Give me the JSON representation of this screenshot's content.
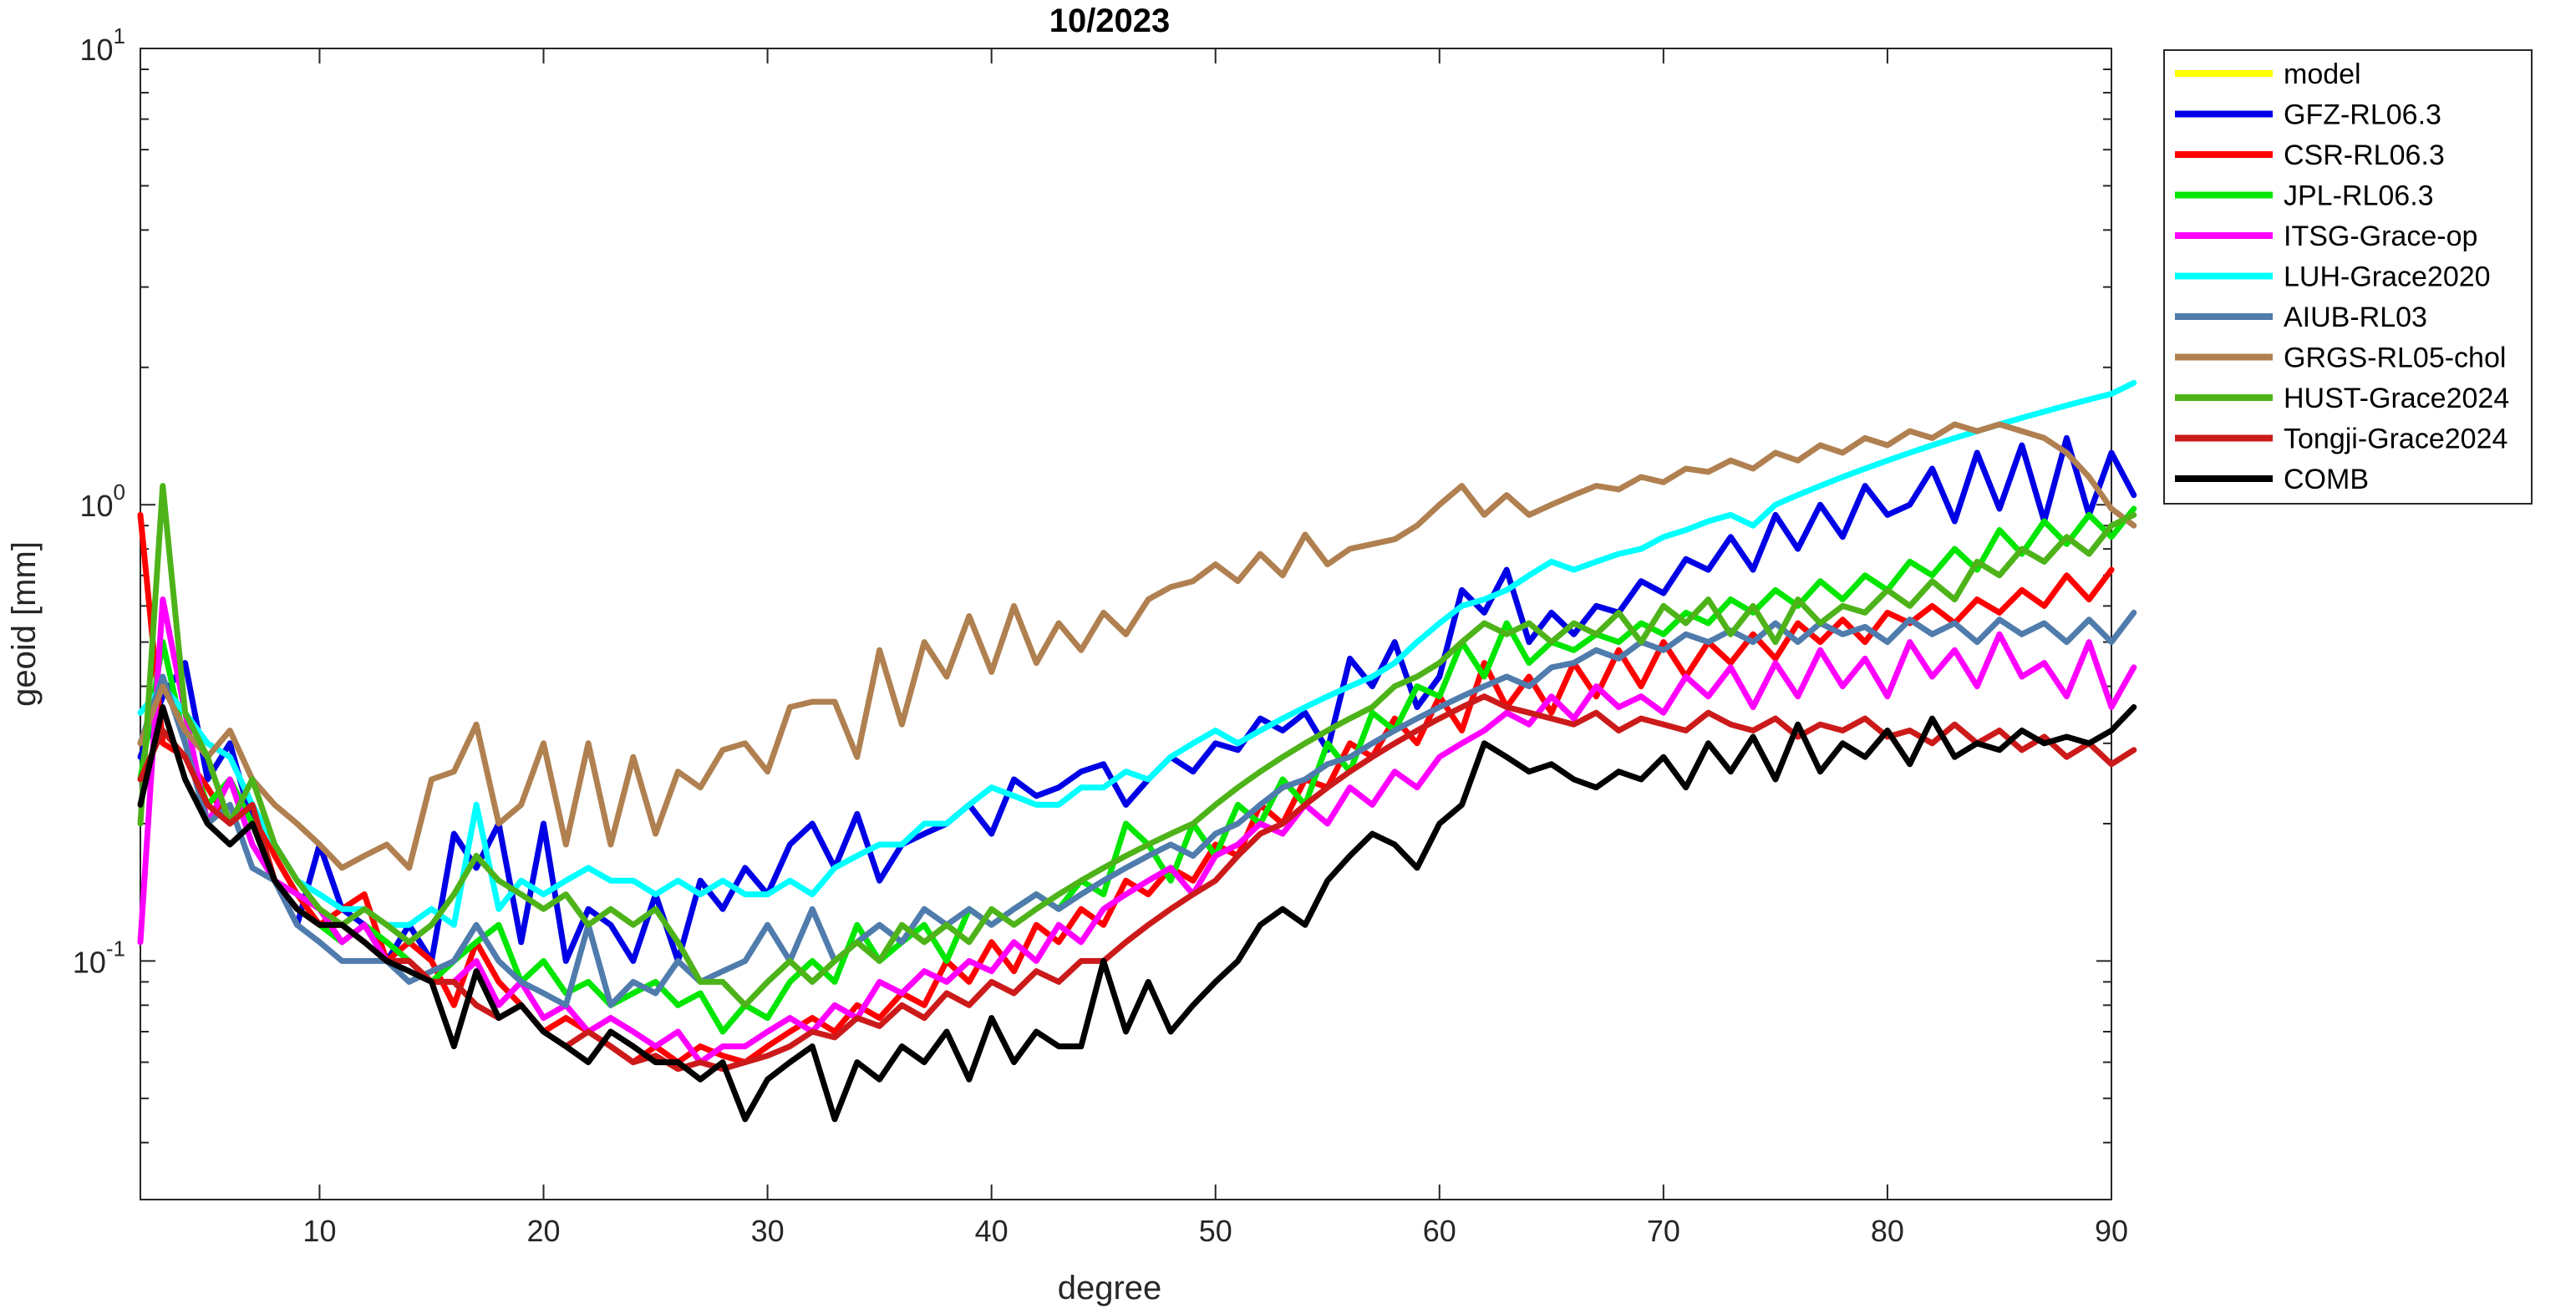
{
  "chart_data": {
    "type": "line",
    "title": "10/2023",
    "xlabel": "degree",
    "ylabel": "geoid [mm]",
    "xlim": [
      2,
      90
    ],
    "ylim": [
      0.03,
      10
    ],
    "yscale": "log",
    "grid": false,
    "legend_position": "outside-top-right",
    "xticks": [
      10,
      20,
      30,
      40,
      50,
      60,
      70,
      80,
      90
    ],
    "xtick_labels": [
      "10",
      "20",
      "30",
      "40",
      "50",
      "60",
      "70",
      "80",
      "90"
    ],
    "yticks": [
      {
        "value": 10,
        "base": "10",
        "exp": "1"
      },
      {
        "value": 1,
        "base": "10",
        "exp": "0"
      },
      {
        "value": 0.1,
        "base": "10",
        "exp": "-1"
      }
    ],
    "series": [
      {
        "name": "model",
        "color": "#FFFF00",
        "x_start": 2,
        "values": []
      },
      {
        "name": "GFZ-RL06.3",
        "color": "#0000E6",
        "x_start": 2,
        "values": [
          0.28,
          0.38,
          0.45,
          0.25,
          0.3,
          0.2,
          0.15,
          0.12,
          0.18,
          0.13,
          0.12,
          0.1,
          0.12,
          0.1,
          0.19,
          0.16,
          0.2,
          0.11,
          0.2,
          0.1,
          0.13,
          0.12,
          0.1,
          0.14,
          0.1,
          0.15,
          0.13,
          0.16,
          0.14,
          0.18,
          0.2,
          0.16,
          0.21,
          0.15,
          0.18,
          0.19,
          0.2,
          0.22,
          0.19,
          0.25,
          0.23,
          0.24,
          0.26,
          0.27,
          0.22,
          0.25,
          0.28,
          0.26,
          0.3,
          0.29,
          0.34,
          0.32,
          0.35,
          0.29,
          0.46,
          0.4,
          0.5,
          0.36,
          0.42,
          0.65,
          0.58,
          0.72,
          0.5,
          0.58,
          0.52,
          0.6,
          0.58,
          0.68,
          0.64,
          0.76,
          0.72,
          0.85,
          0.72,
          0.95,
          0.8,
          1.0,
          0.85,
          1.1,
          0.95,
          1.0,
          1.2,
          0.92,
          1.3,
          0.98,
          1.35,
          0.92,
          1.4,
          0.95,
          1.3,
          1.05
        ]
      },
      {
        "name": "CSR-RL06.3",
        "color": "#FF0000",
        "x_start": 2,
        "values": [
          0.95,
          0.3,
          0.28,
          0.24,
          0.2,
          0.22,
          0.17,
          0.14,
          0.12,
          0.13,
          0.14,
          0.1,
          0.11,
          0.1,
          0.08,
          0.11,
          0.09,
          0.08,
          0.07,
          0.075,
          0.07,
          0.065,
          0.06,
          0.065,
          0.06,
          0.065,
          0.062,
          0.06,
          0.065,
          0.07,
          0.075,
          0.07,
          0.08,
          0.075,
          0.085,
          0.08,
          0.1,
          0.09,
          0.11,
          0.095,
          0.12,
          0.11,
          0.13,
          0.12,
          0.15,
          0.14,
          0.16,
          0.15,
          0.18,
          0.17,
          0.22,
          0.2,
          0.25,
          0.24,
          0.3,
          0.28,
          0.34,
          0.3,
          0.38,
          0.32,
          0.45,
          0.36,
          0.42,
          0.35,
          0.45,
          0.38,
          0.48,
          0.4,
          0.5,
          0.42,
          0.5,
          0.45,
          0.52,
          0.46,
          0.55,
          0.5,
          0.56,
          0.5,
          0.58,
          0.55,
          0.6,
          0.55,
          0.62,
          0.58,
          0.65,
          0.6,
          0.7,
          0.62,
          0.72
        ]
      },
      {
        "name": "JPL-RL06.3",
        "color": "#00E600",
        "x_start": 2,
        "values": [
          0.25,
          0.5,
          0.3,
          0.22,
          0.25,
          0.2,
          0.15,
          0.13,
          0.12,
          0.11,
          0.12,
          0.11,
          0.1,
          0.09,
          0.1,
          0.11,
          0.12,
          0.09,
          0.1,
          0.085,
          0.09,
          0.08,
          0.085,
          0.09,
          0.08,
          0.085,
          0.07,
          0.08,
          0.075,
          0.09,
          0.1,
          0.09,
          0.12,
          0.1,
          0.11,
          0.12,
          0.1,
          0.13,
          0.12,
          0.13,
          0.14,
          0.13,
          0.15,
          0.14,
          0.2,
          0.18,
          0.15,
          0.2,
          0.17,
          0.22,
          0.2,
          0.25,
          0.22,
          0.3,
          0.26,
          0.35,
          0.32,
          0.4,
          0.38,
          0.5,
          0.42,
          0.55,
          0.45,
          0.5,
          0.48,
          0.52,
          0.5,
          0.55,
          0.52,
          0.58,
          0.55,
          0.62,
          0.58,
          0.65,
          0.6,
          0.68,
          0.62,
          0.7,
          0.65,
          0.75,
          0.7,
          0.8,
          0.72,
          0.88,
          0.78,
          0.92,
          0.82,
          0.95,
          0.85,
          0.98
        ]
      },
      {
        "name": "ITSG-Grace-op",
        "color": "#FF00FF",
        "x_start": 2,
        "values": [
          0.11,
          0.62,
          0.35,
          0.2,
          0.25,
          0.18,
          0.15,
          0.14,
          0.13,
          0.11,
          0.12,
          0.1,
          0.1,
          0.09,
          0.09,
          0.1,
          0.08,
          0.09,
          0.075,
          0.08,
          0.07,
          0.075,
          0.07,
          0.065,
          0.07,
          0.06,
          0.065,
          0.065,
          0.07,
          0.075,
          0.07,
          0.08,
          0.075,
          0.09,
          0.085,
          0.095,
          0.09,
          0.1,
          0.095,
          0.11,
          0.1,
          0.12,
          0.11,
          0.13,
          0.14,
          0.15,
          0.16,
          0.14,
          0.17,
          0.18,
          0.2,
          0.19,
          0.22,
          0.2,
          0.24,
          0.22,
          0.26,
          0.24,
          0.28,
          0.3,
          0.32,
          0.35,
          0.33,
          0.38,
          0.34,
          0.4,
          0.36,
          0.38,
          0.35,
          0.42,
          0.38,
          0.44,
          0.36,
          0.45,
          0.38,
          0.48,
          0.4,
          0.46,
          0.38,
          0.5,
          0.42,
          0.48,
          0.4,
          0.52,
          0.42,
          0.45,
          0.38,
          0.5,
          0.36,
          0.44
        ]
      },
      {
        "name": "LUH-Grace2020",
        "color": "#00FFFF",
        "x_start": 2,
        "values": [
          0.35,
          0.4,
          0.35,
          0.3,
          0.28,
          0.22,
          0.18,
          0.15,
          0.14,
          0.13,
          0.13,
          0.12,
          0.12,
          0.13,
          0.12,
          0.22,
          0.13,
          0.15,
          0.14,
          0.15,
          0.16,
          0.15,
          0.15,
          0.14,
          0.15,
          0.14,
          0.15,
          0.14,
          0.14,
          0.15,
          0.14,
          0.16,
          0.17,
          0.18,
          0.18,
          0.2,
          0.2,
          0.22,
          0.24,
          0.23,
          0.22,
          0.22,
          0.24,
          0.24,
          0.26,
          0.25,
          0.28,
          0.3,
          0.32,
          0.3,
          0.32,
          0.34,
          0.36,
          0.38,
          0.4,
          0.42,
          0.45,
          0.5,
          0.55,
          0.6,
          0.62,
          0.65,
          0.7,
          0.75,
          0.72,
          0.75,
          0.78,
          0.8,
          0.85,
          0.88,
          0.92,
          0.95,
          0.9,
          1.0,
          1.05,
          1.1,
          1.15,
          1.2,
          1.25,
          1.3,
          1.35,
          1.4,
          1.45,
          1.5,
          1.55,
          1.6,
          1.65,
          1.7,
          1.75,
          1.85
        ]
      },
      {
        "name": "AIUB-RL03",
        "color": "#4F7CAC",
        "x_start": 2,
        "values": [
          0.3,
          0.42,
          0.3,
          0.2,
          0.22,
          0.16,
          0.15,
          0.12,
          0.11,
          0.1,
          0.1,
          0.1,
          0.09,
          0.095,
          0.1,
          0.12,
          0.1,
          0.09,
          0.085,
          0.08,
          0.12,
          0.08,
          0.09,
          0.085,
          0.1,
          0.09,
          0.095,
          0.1,
          0.12,
          0.1,
          0.13,
          0.1,
          0.11,
          0.12,
          0.11,
          0.13,
          0.12,
          0.13,
          0.12,
          0.13,
          0.14,
          0.13,
          0.14,
          0.15,
          0.16,
          0.17,
          0.18,
          0.17,
          0.19,
          0.2,
          0.22,
          0.24,
          0.25,
          0.27,
          0.28,
          0.3,
          0.32,
          0.34,
          0.36,
          0.38,
          0.4,
          0.42,
          0.4,
          0.44,
          0.45,
          0.48,
          0.46,
          0.5,
          0.48,
          0.52,
          0.5,
          0.53,
          0.5,
          0.55,
          0.5,
          0.55,
          0.52,
          0.54,
          0.5,
          0.56,
          0.52,
          0.55,
          0.5,
          0.56,
          0.52,
          0.55,
          0.5,
          0.56,
          0.5,
          0.58
        ]
      },
      {
        "name": "GRGS-RL05-chol",
        "color": "#B08050",
        "x_start": 2,
        "values": [
          0.3,
          0.4,
          0.32,
          0.28,
          0.32,
          0.25,
          0.22,
          0.2,
          0.18,
          0.16,
          0.17,
          0.18,
          0.16,
          0.25,
          0.26,
          0.33,
          0.2,
          0.22,
          0.3,
          0.18,
          0.3,
          0.18,
          0.28,
          0.19,
          0.26,
          0.24,
          0.29,
          0.3,
          0.26,
          0.36,
          0.37,
          0.37,
          0.28,
          0.48,
          0.33,
          0.5,
          0.42,
          0.57,
          0.43,
          0.6,
          0.45,
          0.55,
          0.48,
          0.58,
          0.52,
          0.62,
          0.66,
          0.68,
          0.74,
          0.68,
          0.78,
          0.7,
          0.86,
          0.74,
          0.8,
          0.82,
          0.84,
          0.9,
          1.0,
          1.1,
          0.95,
          1.05,
          0.95,
          1.0,
          1.05,
          1.1,
          1.08,
          1.15,
          1.12,
          1.2,
          1.18,
          1.25,
          1.2,
          1.3,
          1.25,
          1.35,
          1.3,
          1.4,
          1.35,
          1.45,
          1.4,
          1.5,
          1.45,
          1.5,
          1.45,
          1.4,
          1.3,
          1.15,
          0.98,
          0.9
        ]
      },
      {
        "name": "HUST-Grace2024",
        "color": "#4DB319",
        "x_start": 2,
        "values": [
          0.2,
          1.1,
          0.35,
          0.28,
          0.2,
          0.25,
          0.18,
          0.15,
          0.13,
          0.12,
          0.13,
          0.12,
          0.11,
          0.12,
          0.14,
          0.17,
          0.15,
          0.14,
          0.13,
          0.14,
          0.12,
          0.13,
          0.12,
          0.13,
          0.11,
          0.09,
          0.09,
          0.08,
          0.09,
          0.1,
          0.09,
          0.1,
          0.11,
          0.1,
          0.12,
          0.11,
          0.12,
          0.11,
          0.13,
          0.12,
          0.13,
          0.14,
          0.15,
          0.16,
          0.17,
          0.18,
          0.19,
          0.2,
          0.22,
          0.24,
          0.26,
          0.28,
          0.3,
          0.32,
          0.34,
          0.36,
          0.4,
          0.42,
          0.45,
          0.5,
          0.55,
          0.52,
          0.55,
          0.5,
          0.55,
          0.52,
          0.58,
          0.5,
          0.6,
          0.55,
          0.62,
          0.52,
          0.6,
          0.5,
          0.62,
          0.55,
          0.6,
          0.58,
          0.65,
          0.6,
          0.68,
          0.62,
          0.75,
          0.7,
          0.8,
          0.75,
          0.85,
          0.78,
          0.9,
          0.95
        ]
      },
      {
        "name": "Tongji-Grace2024",
        "color": "#CC1A1A",
        "x_start": 2,
        "values": [
          0.25,
          0.32,
          0.28,
          0.22,
          0.2,
          0.22,
          0.15,
          0.13,
          0.12,
          0.12,
          0.11,
          0.1,
          0.1,
          0.09,
          0.09,
          0.08,
          0.075,
          0.08,
          0.07,
          0.065,
          0.07,
          0.065,
          0.06,
          0.062,
          0.058,
          0.06,
          0.058,
          0.06,
          0.062,
          0.065,
          0.07,
          0.068,
          0.075,
          0.072,
          0.08,
          0.075,
          0.085,
          0.08,
          0.09,
          0.085,
          0.095,
          0.09,
          0.1,
          0.1,
          0.11,
          0.12,
          0.13,
          0.14,
          0.15,
          0.17,
          0.19,
          0.2,
          0.22,
          0.24,
          0.26,
          0.28,
          0.3,
          0.32,
          0.34,
          0.36,
          0.38,
          0.36,
          0.35,
          0.34,
          0.33,
          0.35,
          0.32,
          0.34,
          0.33,
          0.32,
          0.35,
          0.33,
          0.32,
          0.34,
          0.31,
          0.33,
          0.32,
          0.34,
          0.31,
          0.32,
          0.3,
          0.33,
          0.3,
          0.32,
          0.29,
          0.31,
          0.28,
          0.3,
          0.27,
          0.29
        ]
      },
      {
        "name": "COMB",
        "color": "#000000",
        "x_start": 2,
        "values": [
          0.22,
          0.36,
          0.25,
          0.2,
          0.18,
          0.2,
          0.15,
          0.13,
          0.12,
          0.12,
          0.11,
          0.1,
          0.095,
          0.09,
          0.065,
          0.095,
          0.075,
          0.08,
          0.07,
          0.065,
          0.06,
          0.07,
          0.065,
          0.06,
          0.06,
          0.055,
          0.06,
          0.045,
          0.055,
          0.06,
          0.065,
          0.045,
          0.06,
          0.055,
          0.065,
          0.06,
          0.07,
          0.055,
          0.075,
          0.06,
          0.07,
          0.065,
          0.065,
          0.1,
          0.07,
          0.09,
          0.07,
          0.08,
          0.09,
          0.1,
          0.12,
          0.13,
          0.12,
          0.15,
          0.17,
          0.19,
          0.18,
          0.16,
          0.2,
          0.22,
          0.3,
          0.28,
          0.26,
          0.27,
          0.25,
          0.24,
          0.26,
          0.25,
          0.28,
          0.24,
          0.3,
          0.26,
          0.31,
          0.25,
          0.33,
          0.26,
          0.3,
          0.28,
          0.32,
          0.27,
          0.34,
          0.28,
          0.3,
          0.29,
          0.32,
          0.3,
          0.31,
          0.3,
          0.32,
          0.36
        ]
      }
    ]
  }
}
